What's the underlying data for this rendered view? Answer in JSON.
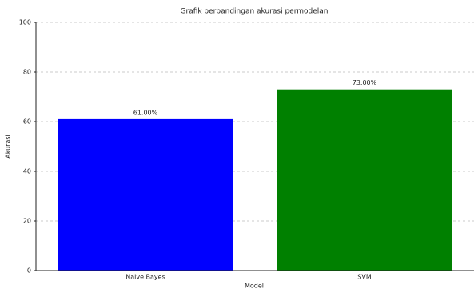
{
  "chart_data": {
    "type": "bar",
    "title": "Grafik perbandingan akurasi permodelan",
    "categories": [
      "Naive Bayes",
      "SVM"
    ],
    "values": [
      61,
      73
    ],
    "value_labels": [
      "61.00%",
      "73.00%"
    ],
    "colors": [
      "#0000ff",
      "#008000"
    ],
    "xlabel": "Model",
    "ylabel": "Akurasi",
    "ylim": [
      0,
      100
    ],
    "yticks": [
      0,
      20,
      40,
      60,
      80,
      100
    ],
    "grid": true
  }
}
